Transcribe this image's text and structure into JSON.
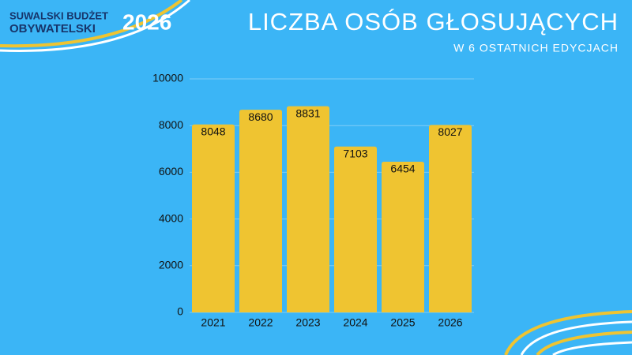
{
  "header": {
    "logo_lines": [
      "SUWALSKI BUDŻET",
      "OBYWATELSKI"
    ],
    "logo_year": "2026"
  },
  "chart_data": {
    "type": "bar",
    "title": "LICZBA OSÓB GŁOSUJĄCYCH",
    "subtitle": "W 6 OSTATNICH EDYCJACH",
    "categories": [
      "2021",
      "2022",
      "2023",
      "2024",
      "2025",
      "2026"
    ],
    "values": [
      8048,
      8680,
      8831,
      7103,
      6454,
      8027
    ],
    "color": "#efc431",
    "ylim": [
      0,
      10000
    ],
    "yticks": [
      0,
      2000,
      4000,
      6000,
      8000,
      10000
    ],
    "grid": true
  }
}
